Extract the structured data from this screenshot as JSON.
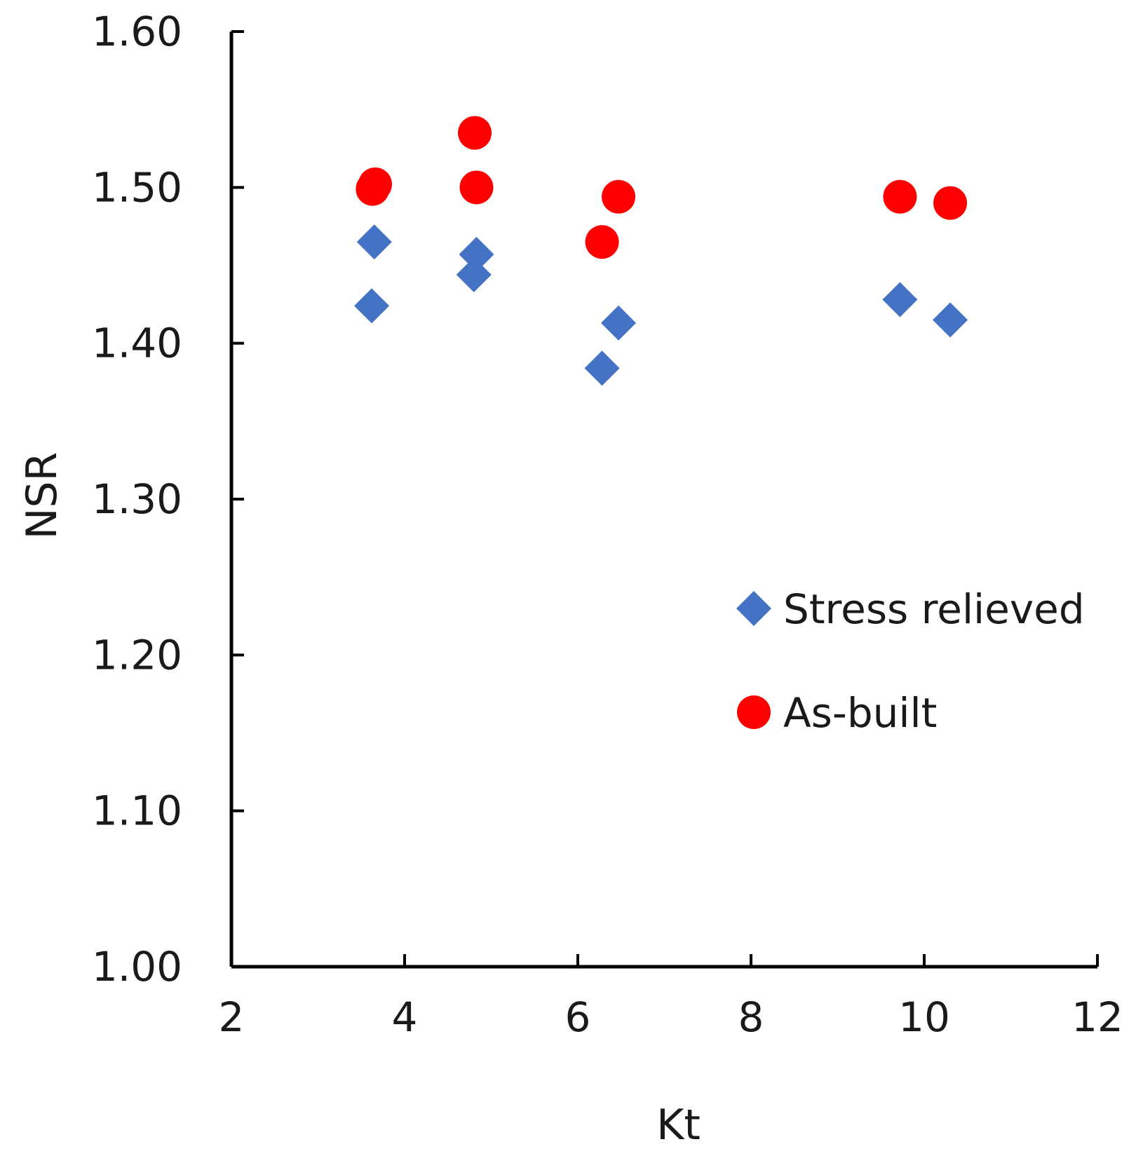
{
  "chart_data": {
    "type": "scatter",
    "title": "",
    "xlabel": "Kt",
    "ylabel": "NSR",
    "xlim": [
      2,
      12
    ],
    "ylim": [
      1.0,
      1.6
    ],
    "xticks": [
      2,
      4,
      6,
      8,
      10,
      12
    ],
    "xtick_labels": [
      "2",
      "4",
      "6",
      "8",
      "10",
      "12"
    ],
    "yticks": [
      1.0,
      1.1,
      1.2,
      1.3,
      1.4,
      1.5,
      1.6
    ],
    "ytick_labels": [
      "1.00",
      "1.10",
      "1.20",
      "1.30",
      "1.40",
      "1.50",
      "1.60"
    ],
    "grid": false,
    "legend_position": "center-right",
    "series": [
      {
        "name": "Stress relieved",
        "marker": "diamond",
        "color": "#4472C4",
        "points": [
          {
            "x": 3.65,
            "y": 1.465
          },
          {
            "x": 3.62,
            "y": 1.424
          },
          {
            "x": 4.83,
            "y": 1.457
          },
          {
            "x": 4.8,
            "y": 1.444
          },
          {
            "x": 6.28,
            "y": 1.384
          },
          {
            "x": 6.47,
            "y": 1.413
          },
          {
            "x": 9.72,
            "y": 1.428
          },
          {
            "x": 10.3,
            "y": 1.415
          }
        ]
      },
      {
        "name": "As-built",
        "marker": "circle",
        "color": "#FF0000",
        "points": [
          {
            "x": 3.63,
            "y": 1.499
          },
          {
            "x": 3.66,
            "y": 1.502
          },
          {
            "x": 4.81,
            "y": 1.535
          },
          {
            "x": 4.83,
            "y": 1.5
          },
          {
            "x": 6.28,
            "y": 1.465
          },
          {
            "x": 6.47,
            "y": 1.494
          },
          {
            "x": 9.72,
            "y": 1.494
          },
          {
            "x": 10.3,
            "y": 1.49
          }
        ]
      }
    ]
  }
}
